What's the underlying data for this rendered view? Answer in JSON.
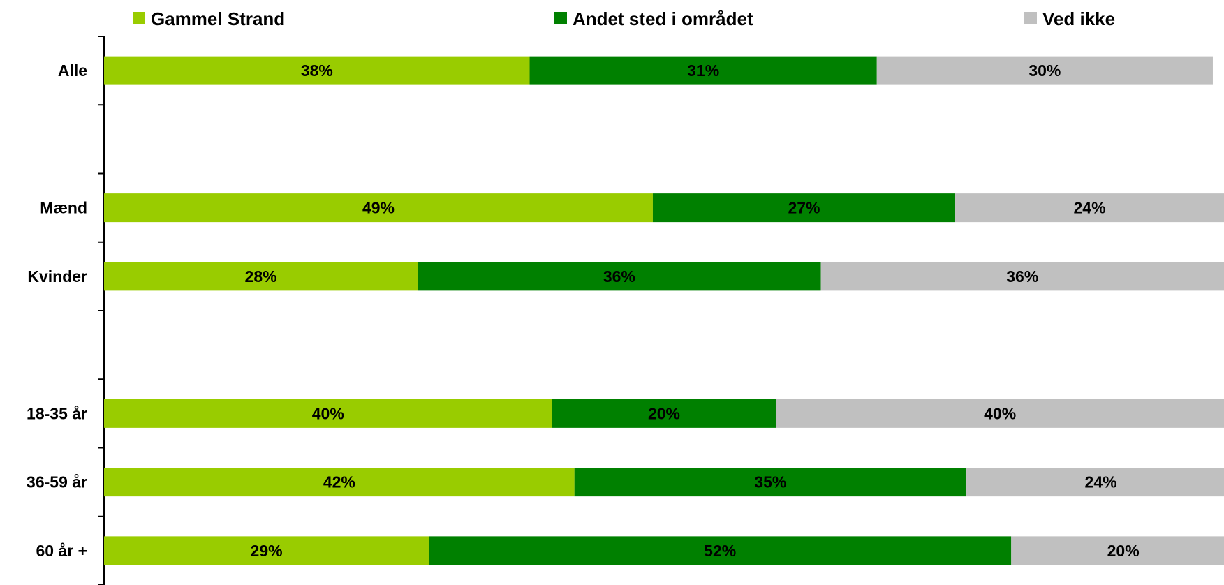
{
  "chart_data": {
    "type": "bar",
    "orientation": "horizontal",
    "stacked": true,
    "percent_stacked": true,
    "legend_position": "top",
    "grid": false,
    "categories": [
      "Alle",
      "",
      "Mænd",
      "Kvinder",
      "",
      "18-35 år",
      "36-59 år",
      "60 år +"
    ],
    "series": [
      {
        "name": "Gammel Strand",
        "color": "#99CC00",
        "values": [
          38,
          null,
          49,
          28,
          null,
          40,
          42,
          29
        ],
        "labels": [
          "38%",
          "",
          "49%",
          "28%",
          "",
          "40%",
          "42%",
          "29%"
        ]
      },
      {
        "name": "Andet sted i området",
        "color": "#008000",
        "values": [
          31,
          null,
          27,
          36,
          null,
          20,
          35,
          52
        ],
        "labels": [
          "31%",
          "",
          "27%",
          "36%",
          "",
          "20%",
          "35%",
          "52%"
        ]
      },
      {
        "name": "Ved ikke",
        "color": "#C0C0C0",
        "values": [
          30,
          null,
          24,
          36,
          null,
          40,
          24,
          20
        ],
        "labels": [
          "30%",
          "",
          "24%",
          "36%",
          "",
          "40%",
          "24%",
          "20%"
        ]
      }
    ],
    "title": "",
    "xlabel": "",
    "ylabel": ""
  }
}
